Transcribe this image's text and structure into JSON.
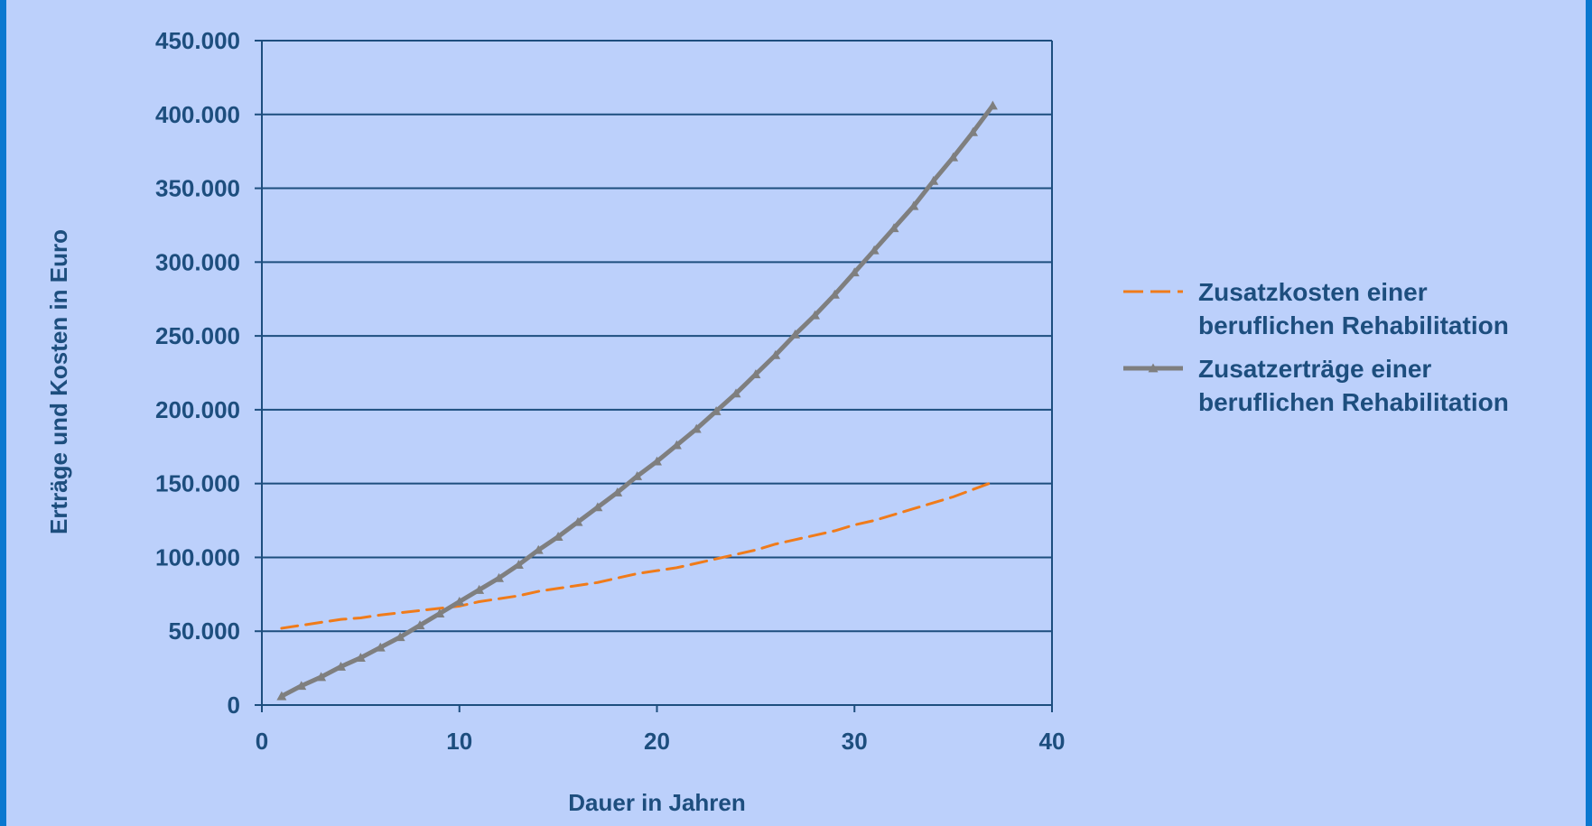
{
  "chart_data": {
    "type": "line",
    "xlabel": "Dauer in Jahren",
    "ylabel": "Erträge und Kosten in Euro",
    "xlim": [
      0,
      40
    ],
    "ylim": [
      0,
      450000
    ],
    "x_ticks": [
      "0",
      "10",
      "20",
      "30",
      "40"
    ],
    "y_ticks": [
      "0",
      "50.000",
      "100.000",
      "150.000",
      "200.000",
      "250.000",
      "300.000",
      "350.000",
      "400.000",
      "450.000"
    ],
    "grid": "horizontal",
    "legend_position": "right",
    "x": [
      1,
      2,
      3,
      4,
      5,
      6,
      7,
      8,
      9,
      10,
      11,
      12,
      13,
      14,
      15,
      16,
      17,
      18,
      19,
      20,
      21,
      22,
      23,
      24,
      25,
      26,
      27,
      28,
      29,
      30,
      31,
      32,
      33,
      34,
      35,
      36,
      37
    ],
    "series": [
      {
        "name": "Zusatzkosten einer beruflichen Rehabilitation",
        "name_lines": [
          "Zusatzkosten einer",
          "beruflichen Rehabilitation"
        ],
        "style": "dashed",
        "color": "#f07b1a",
        "values": [
          52000,
          54000,
          56000,
          58000,
          59000,
          61000,
          62500,
          64000,
          65500,
          67000,
          70000,
          72000,
          74000,
          77000,
          79000,
          81000,
          83000,
          86000,
          89000,
          91000,
          93000,
          96000,
          99000,
          102000,
          105000,
          109000,
          112000,
          115000,
          118000,
          122000,
          125000,
          129000,
          133000,
          137000,
          141000,
          146000,
          151000
        ]
      },
      {
        "name": "Zusatzerträge einer beruflichen Rehabilitation",
        "name_lines": [
          "Zusatzerträge einer",
          "beruflichen Rehabilitation"
        ],
        "style": "solid-triangle",
        "color": "#7f7f7f",
        "values": [
          6000,
          13000,
          19000,
          26000,
          32000,
          39000,
          46000,
          54000,
          62000,
          70000,
          78000,
          86000,
          95000,
          105000,
          114000,
          124000,
          134000,
          144000,
          155000,
          165000,
          176000,
          187000,
          199000,
          211000,
          224000,
          237000,
          251000,
          264000,
          278000,
          293000,
          308000,
          323000,
          338000,
          355000,
          371000,
          388000,
          406000
        ]
      }
    ]
  }
}
